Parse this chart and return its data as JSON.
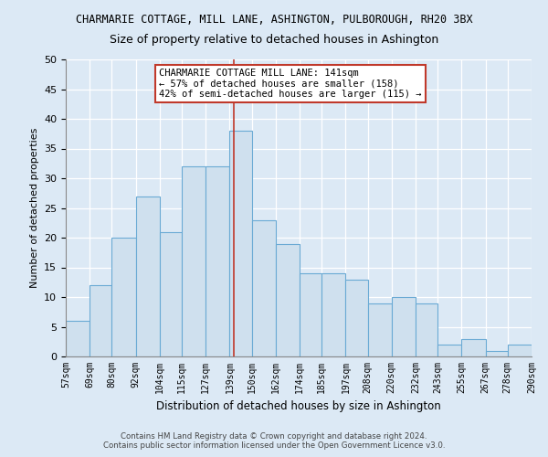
{
  "title": "CHARMARIE COTTAGE, MILL LANE, ASHINGTON, PULBOROUGH, RH20 3BX",
  "subtitle": "Size of property relative to detached houses in Ashington",
  "xlabel": "Distribution of detached houses by size in Ashington",
  "ylabel": "Number of detached properties",
  "bar_vals": [
    6,
    12,
    20,
    27,
    21,
    32,
    32,
    38,
    23,
    19,
    14,
    14,
    13,
    9,
    10,
    9,
    2,
    3,
    1,
    2
  ],
  "all_bin_edges": [
    57,
    69,
    80,
    92,
    104,
    115,
    127,
    139,
    150,
    162,
    174,
    185,
    197,
    208,
    220,
    232,
    243,
    255,
    267,
    278,
    290
  ],
  "bar_color": "#cfe0ee",
  "bar_edge_color": "#6aaad4",
  "property_size": 141,
  "vline_color": "#c0392b",
  "annotation_title": "CHARMARIE COTTAGE MILL LANE: 141sqm",
  "annotation_line1": "← 57% of detached houses are smaller (158)",
  "annotation_line2": "42% of semi-detached houses are larger (115) →",
  "annotation_box_color": "#c0392b",
  "ylim": [
    0,
    50
  ],
  "yticks": [
    0,
    5,
    10,
    15,
    20,
    25,
    30,
    35,
    40,
    45,
    50
  ],
  "footer1": "Contains HM Land Registry data © Crown copyright and database right 2024.",
  "footer2": "Contains public sector information licensed under the Open Government Licence v3.0.",
  "bg_color": "#dce9f5",
  "plot_bg_color": "#dce9f5"
}
